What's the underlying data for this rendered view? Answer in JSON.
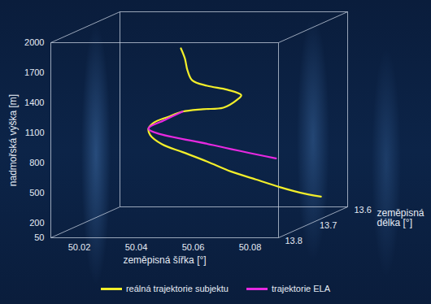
{
  "chart_data": {
    "type": "line3d",
    "x_label": "zeměpisná šířka [°]",
    "y_label": "zeměpisná délka [°]",
    "z_label": "nadmořská výška [m]",
    "xlim": [
      50.01,
      50.09
    ],
    "xticks": [
      50.02,
      50.04,
      50.06,
      50.08
    ],
    "ylim": [
      13.8,
      13.6
    ],
    "yticks": [
      13.8,
      13.7,
      13.6
    ],
    "zlim": [
      50,
      2000
    ],
    "zticks": [
      50,
      200,
      500,
      800,
      1100,
      1400,
      1700,
      2000
    ],
    "legend": "bottom",
    "series": [
      {
        "name": "reálná trajektorie subjektu",
        "color": "#f2ee2a",
        "x": [
          50.0387,
          50.0401,
          50.041,
          50.0427,
          50.0479,
          50.055,
          50.0599,
          50.0584,
          50.0536,
          50.0464,
          50.0393,
          50.0341,
          50.0293,
          50.0273,
          50.0279,
          50.0321,
          50.0393,
          50.0479,
          50.0564,
          50.065,
          50.0736,
          50.0807,
          50.0879
        ],
        "y": [
          13.66,
          13.66,
          13.66,
          13.66,
          13.66,
          13.66,
          13.66,
          13.66,
          13.66,
          13.66,
          13.66,
          13.66,
          13.66,
          13.66,
          13.66,
          13.66,
          13.66,
          13.66,
          13.66,
          13.66,
          13.66,
          13.66,
          13.66
        ],
        "z": [
          1727,
          1626,
          1509,
          1407,
          1353,
          1314,
          1259,
          1212,
          1134,
          1119,
          1095,
          1041,
          986,
          924,
          861,
          768,
          690,
          596,
          495,
          417,
          339,
          284,
          245
        ]
      },
      {
        "name": "trajektorie ELA",
        "color": "#e629e0",
        "x": [
          50.0721,
          50.05,
          50.0273,
          50.033,
          50.0393
        ],
        "y": [
          13.66,
          13.66,
          13.66,
          13.66,
          13.66
        ],
        "z": [
          627,
          760,
          924,
          1010,
          1095
        ]
      }
    ]
  }
}
